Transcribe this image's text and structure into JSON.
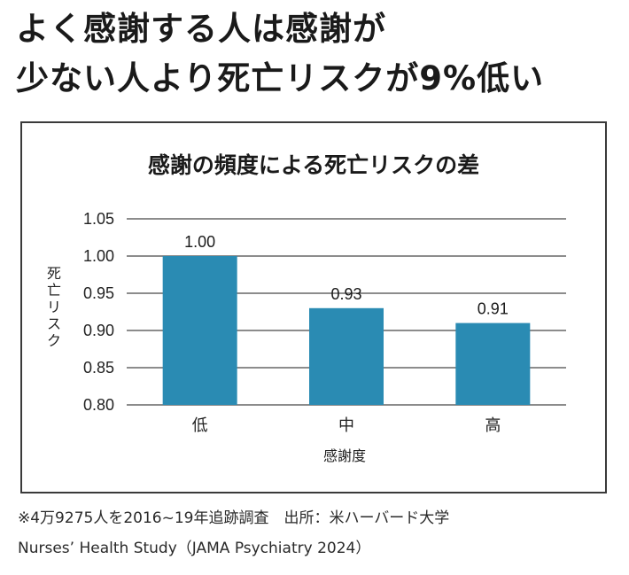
{
  "headline": {
    "line1": "よく感謝する人は感謝が",
    "line2": "少ない人より死亡リスクが9%低い"
  },
  "footnotes": {
    "note": "※4万9275人を2016~19年追跡調査　出所：米ハーバード大学",
    "source": "Nurses’ Health Study（JAMA Psychiatry 2024）"
  },
  "colors": {
    "bar": "#2a8bb3"
  },
  "chart_data": {
    "type": "bar",
    "title": "感謝の頻度による死亡リスクの差",
    "xlabel": "感謝度",
    "ylabel": "死亡リスク",
    "categories": [
      "低",
      "中",
      "高"
    ],
    "values": [
      1.0,
      0.93,
      0.91
    ],
    "data_labels": [
      "1.00",
      "0.93",
      "0.91"
    ],
    "ylim": [
      0.8,
      1.05
    ],
    "yticks": [
      0.8,
      0.85,
      0.9,
      0.95,
      1.0,
      1.05
    ],
    "ytick_labels": [
      "0.80",
      "0.85",
      "0.90",
      "0.95",
      "1.00",
      "1.05"
    ],
    "grid": true,
    "legend": "none"
  }
}
